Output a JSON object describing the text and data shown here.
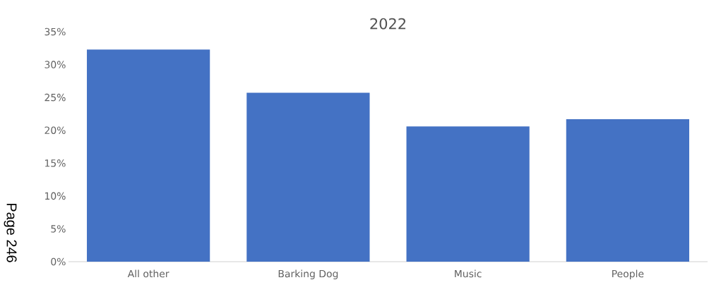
{
  "chart_data": {
    "type": "bar",
    "title": "2022",
    "categories": [
      "All other",
      "Barking Dog",
      "Music",
      "People"
    ],
    "values": [
      32.3,
      25.7,
      20.6,
      21.7
    ],
    "color": "#4472c4",
    "ylim": [
      0,
      35
    ],
    "yticks": [
      {
        "value": 0,
        "label": "0%"
      },
      {
        "value": 5,
        "label": "5%"
      },
      {
        "value": 10,
        "label": "10%"
      },
      {
        "value": 15,
        "label": "15%"
      },
      {
        "value": 20,
        "label": "20%"
      },
      {
        "value": 25,
        "label": "25%"
      },
      {
        "value": 30,
        "label": "30%"
      },
      {
        "value": 35,
        "label": "35%"
      }
    ],
    "grid": false,
    "annotations": [
      "Page 246"
    ]
  }
}
